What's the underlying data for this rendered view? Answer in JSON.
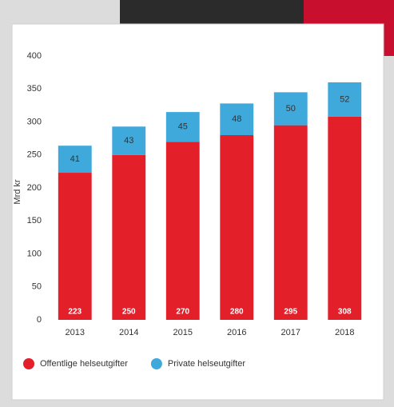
{
  "chart_data": {
    "type": "stacked-bar",
    "y_label": "Mrd kr",
    "categories": [
      "2013",
      "2014",
      "2015",
      "2016",
      "2017",
      "2018"
    ],
    "series": [
      {
        "name": "Offentlige helseutgifter",
        "color": "#e3202a",
        "values": [
          223,
          250,
          270,
          280,
          295,
          308
        ]
      },
      {
        "name": "Private helseutgifter",
        "color": "#3fa9dc",
        "values": [
          41,
          43,
          45,
          48,
          50,
          52
        ]
      }
    ],
    "ylim": [
      0,
      400
    ],
    "yticks": [
      0,
      50,
      100,
      150,
      200,
      250,
      300,
      350,
      400
    ],
    "grid": false
  }
}
